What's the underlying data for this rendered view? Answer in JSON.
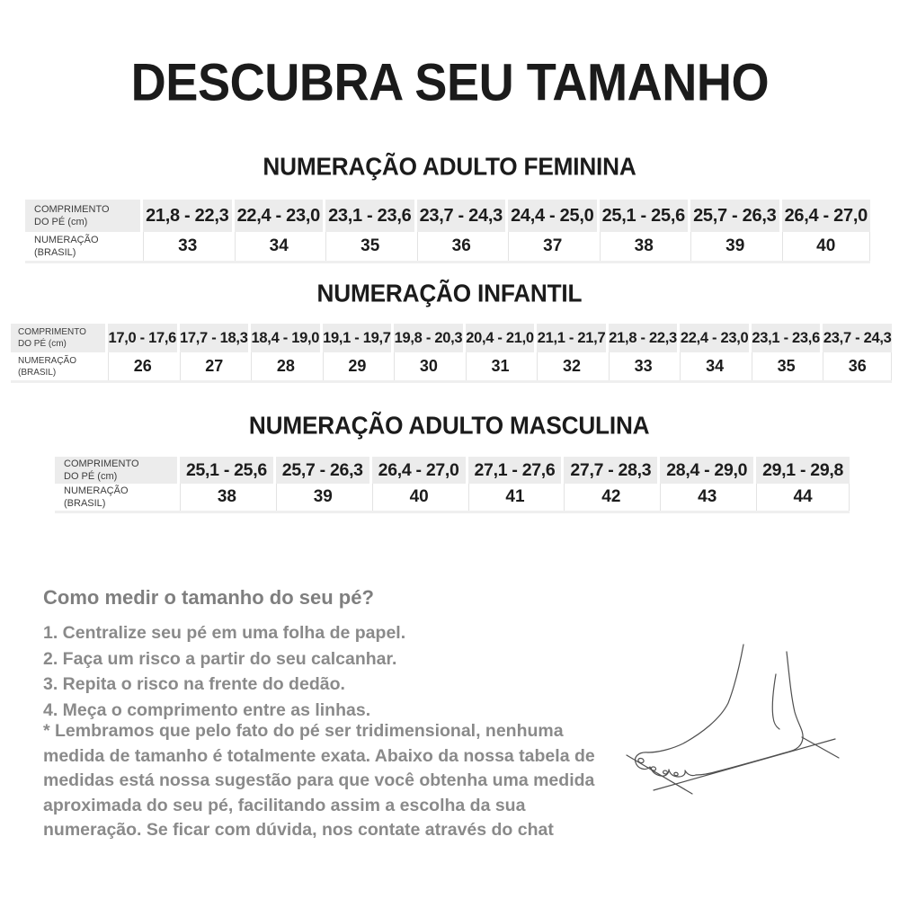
{
  "title": "DESCUBRA SEU TAMANHO",
  "colors": {
    "table_header_bg": "#ececec",
    "table_text": "#1c1c1c",
    "guide_text": "#8a8a8a",
    "table_divider": "#e3e3e3",
    "sketch_stroke": "#4f4f4f"
  },
  "tables": [
    {
      "title": "NUMERAÇÃO ADULTO FEMININA",
      "length_label": "COMPRIMENTO\nDO PÉ (cm)",
      "size_label": "NUMERAÇÃO\n(BRASIL)",
      "lengths_cm": [
        "21,8 - 22,3",
        "22,4 - 23,0",
        "23,1 - 23,6",
        "23,7 - 24,3",
        "24,4 - 25,0",
        "25,1 - 25,6",
        "25,7 - 26,3",
        "26,4 - 27,0"
      ],
      "sizes": [
        "33",
        "34",
        "35",
        "36",
        "37",
        "38",
        "39",
        "40"
      ]
    },
    {
      "title": "NUMERAÇÃO INFANTIL",
      "length_label": "COMPRIMENTO\nDO PÉ (cm)",
      "size_label": "NUMERAÇÃO\n(BRASIL)",
      "lengths_cm": [
        "17,0 - 17,6",
        "17,7 - 18,3",
        "18,4 - 19,0",
        "19,1 - 19,7",
        "19,8 - 20,3",
        "20,4 - 21,0",
        "21,1 - 21,7",
        "21,8 - 22,3",
        "22,4 - 23,0",
        "23,1 - 23,6",
        "23,7 - 24,3"
      ],
      "sizes": [
        "26",
        "27",
        "28",
        "29",
        "30",
        "31",
        "32",
        "33",
        "34",
        "35",
        "36"
      ]
    },
    {
      "title": "NUMERAÇÃO ADULTO MASCULINA",
      "length_label": "COMPRIMENTO\nDO PÉ (cm)",
      "size_label": "NUMERAÇÃO\n(BRASIL)",
      "lengths_cm": [
        "25,1 - 25,6",
        "25,7 - 26,3",
        "26,4 - 27,0",
        "27,1 - 27,6",
        "27,7 - 28,3",
        "28,4 - 29,0",
        "29,1 - 29,8"
      ],
      "sizes": [
        "38",
        "39",
        "40",
        "41",
        "42",
        "43",
        "44"
      ]
    }
  ],
  "measure_guide": {
    "heading": "Como medir o tamanho do seu pé?",
    "steps": [
      "1. Centralize seu pé em uma folha de papel.",
      "2. Faça um risco a partir do seu calcanhar.",
      "3. Repita o risco na frente do dedão.",
      "4. Meça o comprimento entre as linhas."
    ],
    "note": "* Lembramos que pelo fato do pé ser tridimensional, nenhuma medida de tamanho é totalmente exata. Abaixo da nossa tabela de medidas está nossa sugestão para que você obtenha uma medida aproximada do seu pé, facilitando assim a escolha da sua numeração. Se ficar com dúvida, nos contate através do chat"
  },
  "illustration": "foot-measurement-sketch"
}
